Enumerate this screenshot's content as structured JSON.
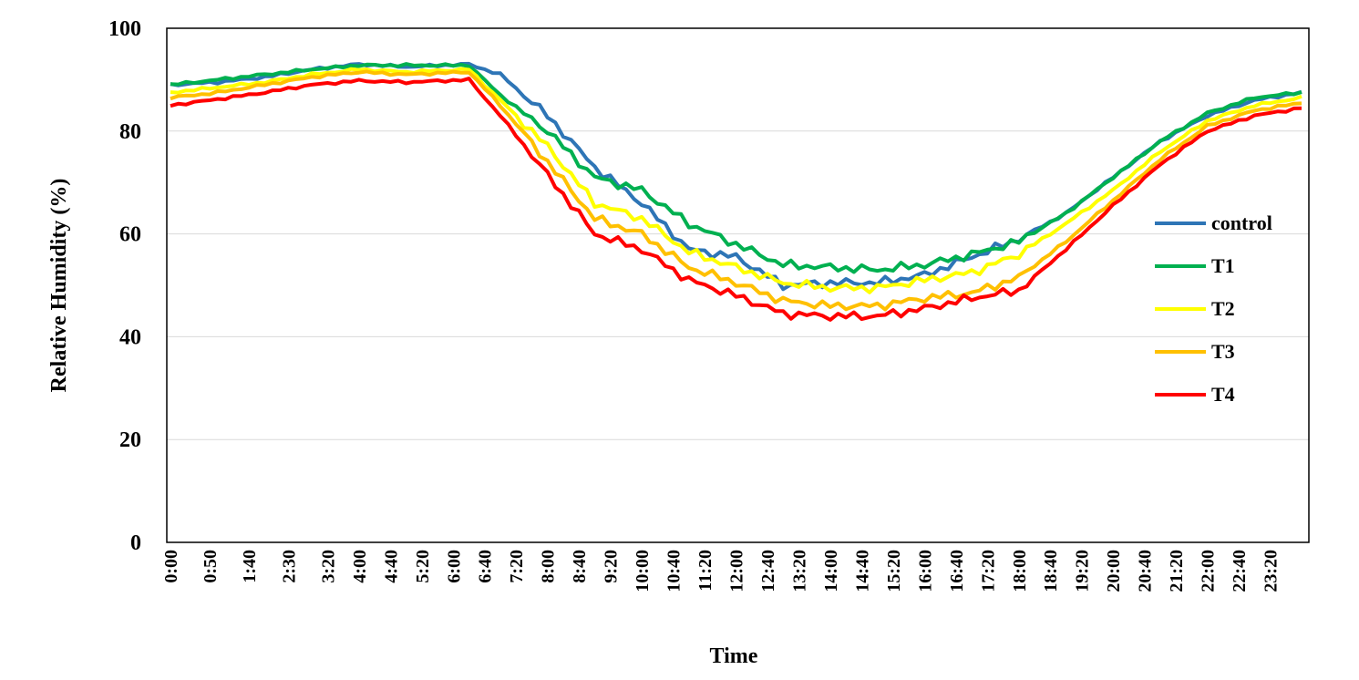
{
  "chart_data": {
    "type": "line",
    "xlabel": "Time",
    "ylabel": "Relative Humidity (%)",
    "ylim": [
      0,
      100
    ],
    "yticks": [
      0,
      20,
      40,
      60,
      80,
      100
    ],
    "grid": true,
    "legend_position": "right",
    "tick_labels": [
      "0:00",
      "0:50",
      "1:40",
      "2:30",
      "3:20",
      "4:00",
      "4:40",
      "5:20",
      "6:00",
      "6:40",
      "7:20",
      "8:00",
      "8:40",
      "9:20",
      "10:00",
      "10:40",
      "11:20",
      "12:00",
      "12:40",
      "13:20",
      "14:00",
      "14:40",
      "15:20",
      "16:00",
      "16:40",
      "17:20",
      "18:00",
      "18:40",
      "19:20",
      "20:00",
      "20:40",
      "21:20",
      "22:00",
      "22:40",
      "23:20"
    ],
    "tick_positions": [
      0,
      5,
      10,
      15,
      20,
      24,
      28,
      32,
      36,
      40,
      44,
      48,
      52,
      56,
      60,
      64,
      68,
      72,
      76,
      80,
      84,
      88,
      92,
      96,
      100,
      104,
      108,
      112,
      116,
      120,
      124,
      128,
      132,
      136,
      140
    ],
    "x_count": 145,
    "series": [
      {
        "name": "control",
        "color": "#2E75B6",
        "points": [
          [
            0,
            89
          ],
          [
            6,
            89.5
          ],
          [
            12,
            90.5
          ],
          [
            18,
            92
          ],
          [
            24,
            93
          ],
          [
            30,
            92.5
          ],
          [
            38,
            93
          ],
          [
            42,
            91
          ],
          [
            48,
            83
          ],
          [
            54,
            73
          ],
          [
            60,
            66
          ],
          [
            66,
            57
          ],
          [
            72,
            55.5
          ],
          [
            78,
            50
          ],
          [
            84,
            50.5
          ],
          [
            90,
            50.5
          ],
          [
            96,
            52
          ],
          [
            102,
            55.5
          ],
          [
            108,
            59
          ],
          [
            114,
            64
          ],
          [
            120,
            71
          ],
          [
            126,
            78
          ],
          [
            132,
            83
          ],
          [
            138,
            86
          ],
          [
            144,
            87.5
          ]
        ]
      },
      {
        "name": "T1",
        "color": "#00B050",
        "points": [
          [
            0,
            89
          ],
          [
            6,
            90
          ],
          [
            12,
            91
          ],
          [
            18,
            92
          ],
          [
            24,
            92.8
          ],
          [
            30,
            92.8
          ],
          [
            38,
            92.8
          ],
          [
            42,
            87
          ],
          [
            48,
            80
          ],
          [
            54,
            71
          ],
          [
            60,
            68.5
          ],
          [
            66,
            62
          ],
          [
            72,
            58
          ],
          [
            78,
            54
          ],
          [
            84,
            53.5
          ],
          [
            90,
            53
          ],
          [
            96,
            54
          ],
          [
            102,
            56
          ],
          [
            108,
            58.5
          ],
          [
            114,
            64
          ],
          [
            120,
            71
          ],
          [
            126,
            78
          ],
          [
            132,
            83.5
          ],
          [
            138,
            86.5
          ],
          [
            144,
            87.5
          ]
        ]
      },
      {
        "name": "T2",
        "color": "#FFFF00",
        "points": [
          [
            0,
            87.5
          ],
          [
            6,
            88.5
          ],
          [
            12,
            89.5
          ],
          [
            18,
            91
          ],
          [
            24,
            92
          ],
          [
            30,
            91.5
          ],
          [
            38,
            92
          ],
          [
            42,
            86
          ],
          [
            48,
            77
          ],
          [
            54,
            66
          ],
          [
            60,
            63
          ],
          [
            66,
            56.5
          ],
          [
            72,
            53.5
          ],
          [
            78,
            50.5
          ],
          [
            84,
            49.5
          ],
          [
            90,
            49.5
          ],
          [
            96,
            51
          ],
          [
            102,
            52.5
          ],
          [
            108,
            56
          ],
          [
            114,
            62
          ],
          [
            120,
            68.5
          ],
          [
            126,
            76
          ],
          [
            132,
            82
          ],
          [
            138,
            85
          ],
          [
            144,
            86.5
          ]
        ]
      },
      {
        "name": "T3",
        "color": "#FFC000",
        "points": [
          [
            0,
            86.5
          ],
          [
            6,
            87.5
          ],
          [
            12,
            89
          ],
          [
            18,
            90.5
          ],
          [
            24,
            91.5
          ],
          [
            30,
            91
          ],
          [
            38,
            91.5
          ],
          [
            42,
            85
          ],
          [
            48,
            74
          ],
          [
            54,
            63
          ],
          [
            60,
            60
          ],
          [
            66,
            53.5
          ],
          [
            72,
            50.5
          ],
          [
            78,
            47
          ],
          [
            84,
            46
          ],
          [
            90,
            46
          ],
          [
            96,
            47.5
          ],
          [
            102,
            48.5
          ],
          [
            108,
            51.5
          ],
          [
            114,
            58.5
          ],
          [
            120,
            66.5
          ],
          [
            126,
            74.5
          ],
          [
            132,
            81
          ],
          [
            138,
            84
          ],
          [
            144,
            85.5
          ]
        ]
      },
      {
        "name": "T4",
        "color": "#FF0000",
        "points": [
          [
            0,
            85
          ],
          [
            6,
            86.2
          ],
          [
            12,
            87.5
          ],
          [
            18,
            89
          ],
          [
            24,
            89.8
          ],
          [
            30,
            89.5
          ],
          [
            38,
            90
          ],
          [
            42,
            83
          ],
          [
            48,
            71.5
          ],
          [
            54,
            60
          ],
          [
            60,
            57
          ],
          [
            66,
            51
          ],
          [
            72,
            48
          ],
          [
            78,
            44.5
          ],
          [
            84,
            44
          ],
          [
            90,
            44
          ],
          [
            96,
            45.5
          ],
          [
            102,
            47.5
          ],
          [
            108,
            49
          ],
          [
            114,
            57
          ],
          [
            120,
            65.5
          ],
          [
            126,
            73.5
          ],
          [
            132,
            80
          ],
          [
            138,
            83
          ],
          [
            144,
            84.5
          ]
        ]
      }
    ]
  }
}
